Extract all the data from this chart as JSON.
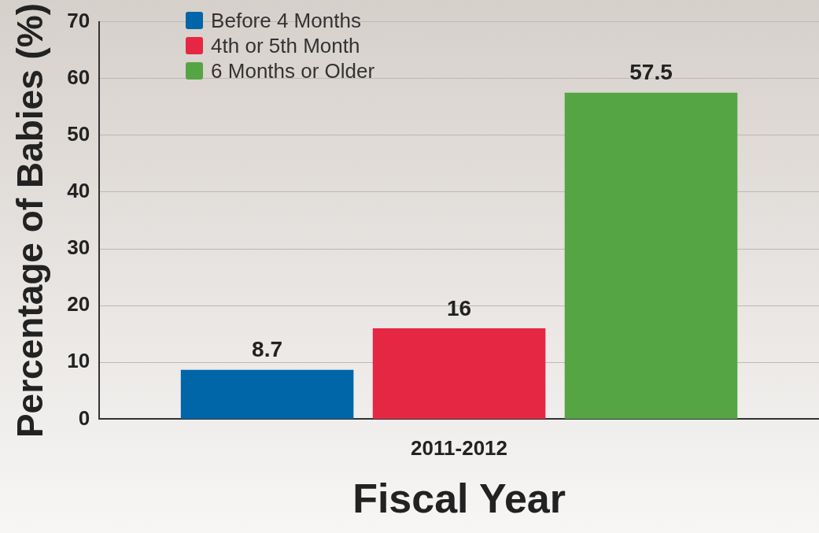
{
  "chart_data": {
    "type": "bar",
    "xlabel": "Fiscal Year",
    "ylabel": "Percentage of Babies (%)",
    "categories": [
      "2011-2012"
    ],
    "series": [
      {
        "name": "Before 4 Months",
        "color": "#0066a8",
        "values": [
          8.7
        ]
      },
      {
        "name": "4th or 5th Month",
        "color": "#e62744",
        "values": [
          16
        ]
      },
      {
        "name": "6 Months or Older",
        "color": "#55a545",
        "values": [
          57.5
        ]
      }
    ],
    "ylim": [
      0,
      70
    ],
    "yticks": [
      0,
      10,
      20,
      30,
      40,
      50,
      60,
      70
    ],
    "grid": "y",
    "legend": "top left",
    "data_labels": true
  }
}
